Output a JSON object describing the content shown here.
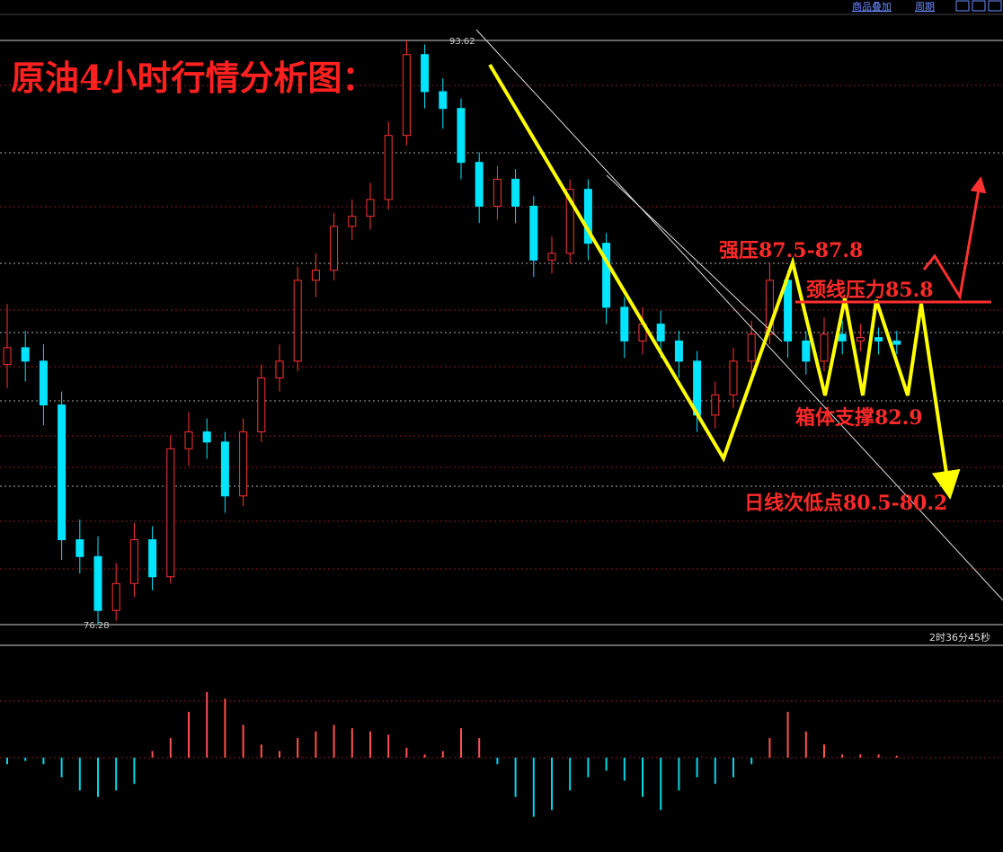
{
  "toolbar": {
    "items": [
      "商品叠加",
      "周期"
    ]
  },
  "chart_data": {
    "type": "candlestick",
    "title": "原油4小时行情分析图：",
    "ylim": [
      76.28,
      93.62
    ],
    "series": {
      "open": [
        84.0,
        84.5,
        84.1,
        82.8,
        78.8,
        78.3,
        76.7,
        77.5,
        78.8,
        77.7,
        81.5,
        82.0,
        81.7,
        80.1,
        82.0,
        83.6,
        84.1,
        86.5,
        86.8,
        88.1,
        88.4,
        88.9,
        90.8,
        93.2,
        92.1,
        91.6,
        90.0,
        88.7,
        89.5,
        88.7,
        87.1,
        87.3,
        89.2,
        87.6,
        85.7,
        84.7,
        85.2,
        84.7,
        84.1,
        82.5,
        83.1,
        84.1,
        84.9,
        86.5,
        84.7,
        84.1,
        84.9,
        84.7,
        84.8,
        84.7
      ],
      "high": [
        85.8,
        85.0,
        84.6,
        83.2,
        79.4,
        78.9,
        78.1,
        79.3,
        79.2,
        81.9,
        82.6,
        82.4,
        82.0,
        82.4,
        84.0,
        84.6,
        86.9,
        87.3,
        88.5,
        88.9,
        89.4,
        91.2,
        93.62,
        93.5,
        92.5,
        91.9,
        90.3,
        89.9,
        89.8,
        89.0,
        87.8,
        89.5,
        89.5,
        87.9,
        86.0,
        85.7,
        85.6,
        85.0,
        84.4,
        83.5,
        84.5,
        85.3,
        87.0,
        86.8,
        85.0,
        85.4,
        85.3,
        85.2,
        85.1,
        85.0
      ],
      "low": [
        83.3,
        83.5,
        82.2,
        78.2,
        77.8,
        76.28,
        76.4,
        77.1,
        77.3,
        77.5,
        81.0,
        81.2,
        79.6,
        79.8,
        81.7,
        83.2,
        83.8,
        86.0,
        86.5,
        87.7,
        88.0,
        88.6,
        90.5,
        91.6,
        91.0,
        89.5,
        88.2,
        88.3,
        88.2,
        86.6,
        86.7,
        87.0,
        87.1,
        85.2,
        84.2,
        84.3,
        84.2,
        83.6,
        82.0,
        82.1,
        82.7,
        83.8,
        84.6,
        84.2,
        83.7,
        83.8,
        84.3,
        84.4,
        84.3,
        84.3
      ],
      "close": [
        84.5,
        84.1,
        82.8,
        78.8,
        78.3,
        76.7,
        77.5,
        78.8,
        77.7,
        81.5,
        82.0,
        81.7,
        80.1,
        82.0,
        83.6,
        84.1,
        86.5,
        86.8,
        88.1,
        88.4,
        88.9,
        90.8,
        93.2,
        92.1,
        91.6,
        90.0,
        88.7,
        89.5,
        88.7,
        87.1,
        87.3,
        89.2,
        87.6,
        85.7,
        84.7,
        85.2,
        84.7,
        84.1,
        82.5,
        83.1,
        84.1,
        84.9,
        86.5,
        84.7,
        84.1,
        84.9,
        84.7,
        84.8,
        84.7,
        84.6
      ],
      "up_color": "#ff3232",
      "down_color": "#00e4ff"
    },
    "high_label": 93.62,
    "low_label": 76.28,
    "annotations": [
      "强压87.5-87.8",
      "颈线压力85.8",
      "箱体支撑82.9",
      "日线次低点80.5-80.2"
    ],
    "macd": {
      "values": [
        -0.1,
        -0.05,
        -0.1,
        -0.3,
        -0.5,
        -0.6,
        -0.5,
        -0.4,
        0.1,
        0.3,
        0.7,
        1.0,
        0.9,
        0.5,
        0.2,
        0.1,
        0.3,
        0.4,
        0.5,
        0.45,
        0.4,
        0.35,
        0.15,
        0.05,
        0.1,
        0.45,
        0.3,
        -0.1,
        -0.6,
        -0.9,
        -0.8,
        -0.5,
        -0.3,
        -0.2,
        -0.35,
        -0.6,
        -0.8,
        -0.5,
        -0.3,
        -0.4,
        -0.3,
        -0.1,
        0.3,
        0.7,
        0.4,
        0.2,
        0.05,
        0.05,
        0.05,
        0.03
      ],
      "ylim": [
        -1.4,
        1.4
      ],
      "up_color": "#ff5050",
      "down_color": "#00d8e8"
    },
    "countdown": "2时36分45秒"
  }
}
